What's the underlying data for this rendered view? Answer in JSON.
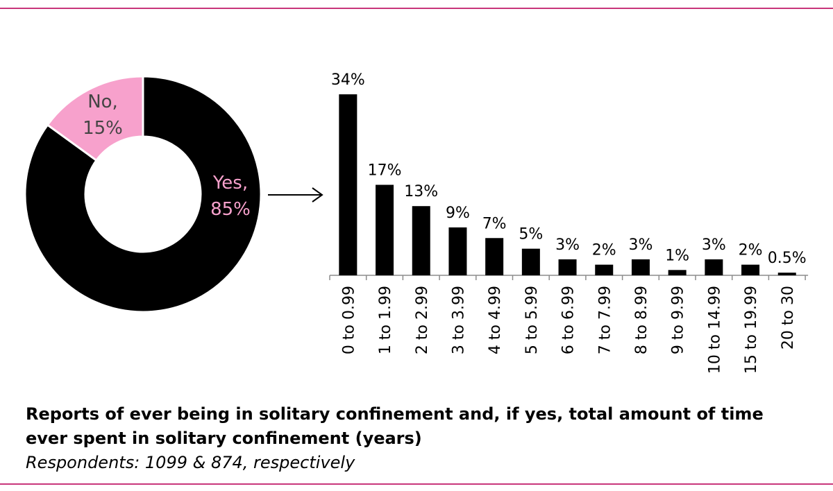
{
  "caption": {
    "title_line1": "Reports of ever being in solitary confinement and, if yes, total amount of time",
    "title_line2": "ever spent in solitary confinement (years)",
    "subtitle": "Respondents: 1099 & 874, respectively"
  },
  "colors": {
    "rule": "#c8357a",
    "yes": "#000000",
    "no": "#f7a1cc",
    "label_pink": "#f7a1cc",
    "label_dark": "#444444",
    "bar": "#000000"
  },
  "chart_data": [
    {
      "type": "pie",
      "variant": "donut",
      "slices": [
        {
          "label": "Yes,",
          "value_label": "85%",
          "value": 85
        },
        {
          "label": "No,",
          "value_label": "15%",
          "value": 15
        }
      ]
    },
    {
      "type": "bar",
      "categories": [
        "0 to 0.99",
        "1 to 1.99",
        "2 to 2.99",
        "3 to 3.99",
        "4 to 4.99",
        "5 to 5.99",
        "6 to 6.99",
        "7 to 7.99",
        "8 to 8.99",
        "9 to 9.99",
        "10 to 14.99",
        "15 to 19.99",
        "20 to 30"
      ],
      "values": [
        34,
        17,
        13,
        9,
        7,
        5,
        3,
        2,
        3,
        1,
        3,
        2,
        0.5
      ],
      "value_labels": [
        "34%",
        "17%",
        "13%",
        "9%",
        "7%",
        "5%",
        "3%",
        "2%",
        "3%",
        "1%",
        "3%",
        "2%",
        "0.5%"
      ],
      "ylim": [
        0,
        34
      ],
      "grid": false
    }
  ]
}
